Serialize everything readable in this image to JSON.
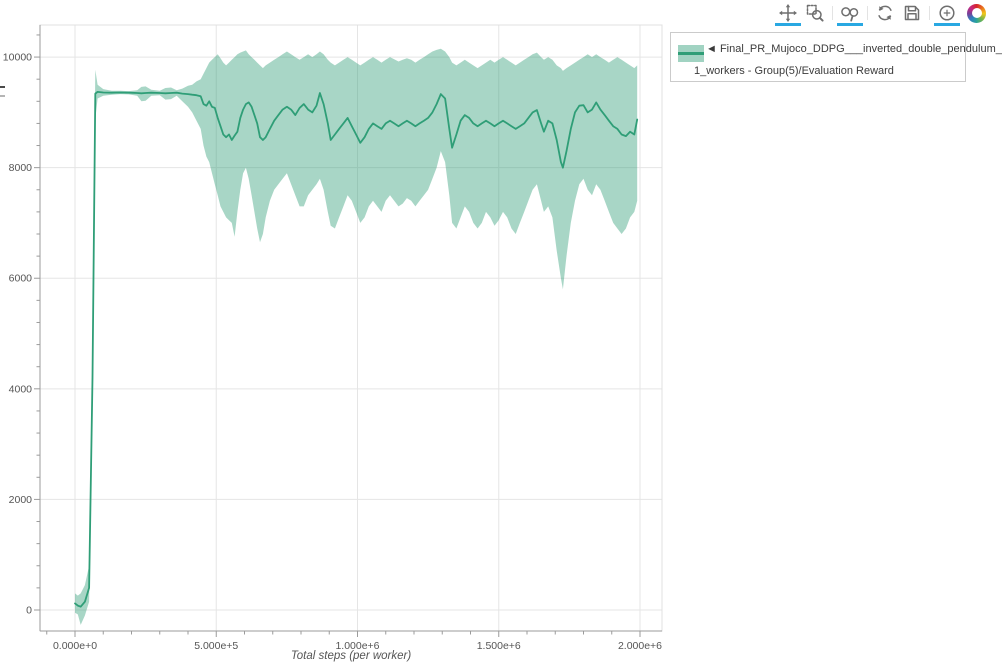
{
  "toolbar": {
    "active_color": "#29a8e2",
    "tools": [
      {
        "id": "pan",
        "icon": "move-arrows-icon",
        "active": true
      },
      {
        "id": "box-zoom",
        "icon": "magnifier-box-icon",
        "active": false
      },
      {
        "id": "wheel-zoom",
        "icon": "magnifier-wheel-icon",
        "active": true
      },
      {
        "id": "reset",
        "icon": "refresh-icon",
        "active": false
      },
      {
        "id": "save",
        "icon": "floppy-disk-icon",
        "active": false
      },
      {
        "id": "hover",
        "icon": "crosshair-circle-icon",
        "active": true
      }
    ]
  },
  "legend": {
    "swatch_fill": "rgba(47,158,119,0.45)",
    "swatch_line": "#2f9e77",
    "label_line1": "◄ Final_PR_Mujoco_DDPG___inverted_double_pendulum_",
    "label_line2": "1_workers - Group(5)/Evaluation Reward"
  },
  "chart_data": {
    "type": "line",
    "title": "",
    "xlabel": "Total steps (per worker)",
    "ylabel": "",
    "grid": true,
    "legend_position": "outside-top-right",
    "x_range": [
      -123900,
      2077900
    ],
    "y_range": [
      -380,
      10580
    ],
    "x_ticks": [
      {
        "v": 0,
        "label": "0.000e+0"
      },
      {
        "v": 500000,
        "label": "5.000e+5"
      },
      {
        "v": 1000000,
        "label": "1.000e+6"
      },
      {
        "v": 1500000,
        "label": "1.500e+6"
      },
      {
        "v": 2000000,
        "label": "2.000e+6"
      }
    ],
    "y_ticks": [
      {
        "v": 0,
        "label": "0"
      },
      {
        "v": 2000,
        "label": "2000"
      },
      {
        "v": 4000,
        "label": "4000"
      },
      {
        "v": 6000,
        "label": "6000"
      },
      {
        "v": 8000,
        "label": "8000"
      },
      {
        "v": 10000,
        "label": "10000"
      }
    ],
    "x_minor_step": 100000,
    "y_minor_step": 400,
    "colors": {
      "line": "#2f9e77",
      "band": "rgba(47,158,119,0.42)",
      "grid": "#e5e5e5",
      "frame": "#e0e0e0",
      "axis": "#9b9b9b",
      "tick": "#9b9b9b",
      "tick_label": "#555555"
    },
    "series": [
      {
        "name": "Final_PR_Mujoco_DDPG___inverted_double_pendulum_1_workers - Group(5)/Evaluation Reward",
        "note": "points are [steps, mean_reward, band_low, band_high]",
        "points": [
          [
            0,
            120,
            -50,
            300
          ],
          [
            10000,
            80,
            -80,
            260
          ],
          [
            20000,
            60,
            -270,
            300
          ],
          [
            35000,
            150,
            -100,
            450
          ],
          [
            50000,
            400,
            150,
            800
          ],
          [
            62000,
            4200,
            3600,
            4900
          ],
          [
            72000,
            9340,
            8880,
            9770
          ],
          [
            80000,
            9370,
            9250,
            9500
          ],
          [
            100000,
            9360,
            9300,
            9420
          ],
          [
            130000,
            9355,
            9320,
            9390
          ],
          [
            160000,
            9360,
            9330,
            9390
          ],
          [
            190000,
            9355,
            9325,
            9385
          ],
          [
            220000,
            9350,
            9300,
            9400
          ],
          [
            235000,
            9345,
            9200,
            9460
          ],
          [
            250000,
            9350,
            9210,
            9470
          ],
          [
            270000,
            9355,
            9300,
            9410
          ],
          [
            300000,
            9350,
            9310,
            9390
          ],
          [
            320000,
            9345,
            9230,
            9440
          ],
          [
            340000,
            9350,
            9240,
            9450
          ],
          [
            360000,
            9355,
            9300,
            9400
          ],
          [
            380000,
            9340,
            9200,
            9430
          ],
          [
            400000,
            9330,
            9100,
            9480
          ],
          [
            415000,
            9320,
            9000,
            9500
          ],
          [
            430000,
            9310,
            8850,
            9560
          ],
          [
            445000,
            9290,
            8700,
            9600
          ],
          [
            455000,
            9150,
            8400,
            9700
          ],
          [
            465000,
            9120,
            8200,
            9800
          ],
          [
            475000,
            9200,
            8100,
            9900
          ],
          [
            485000,
            9100,
            7900,
            9950
          ],
          [
            495000,
            9080,
            7700,
            10000
          ],
          [
            505000,
            8900,
            7500,
            10050
          ],
          [
            515000,
            8750,
            7300,
            9980
          ],
          [
            525000,
            8600,
            7200,
            9900
          ],
          [
            535000,
            8550,
            7100,
            9850
          ],
          [
            545000,
            8600,
            7050,
            9900
          ],
          [
            555000,
            8500,
            7000,
            9950
          ],
          [
            565000,
            8580,
            6750,
            10000
          ],
          [
            575000,
            8650,
            7200,
            10050
          ],
          [
            585000,
            8900,
            7600,
            10080
          ],
          [
            595000,
            9050,
            7900,
            10100
          ],
          [
            605000,
            9150,
            8000,
            10120
          ],
          [
            615000,
            9180,
            7800,
            10050
          ],
          [
            625000,
            9100,
            7500,
            10000
          ],
          [
            635000,
            8950,
            7200,
            9950
          ],
          [
            645000,
            8800,
            6900,
            9900
          ],
          [
            655000,
            8550,
            6650,
            9850
          ],
          [
            665000,
            8500,
            6800,
            9800
          ],
          [
            675000,
            8550,
            7100,
            9850
          ],
          [
            690000,
            8700,
            7400,
            9900
          ],
          [
            705000,
            8850,
            7600,
            9950
          ],
          [
            720000,
            8950,
            7700,
            10000
          ],
          [
            735000,
            9050,
            7800,
            10050
          ],
          [
            750000,
            9100,
            7900,
            10100
          ],
          [
            765000,
            9050,
            7700,
            10050
          ],
          [
            780000,
            8950,
            7500,
            10000
          ],
          [
            795000,
            9080,
            7300,
            9950
          ],
          [
            810000,
            9150,
            7300,
            10000
          ],
          [
            825000,
            9050,
            7500,
            10050
          ],
          [
            840000,
            9000,
            7600,
            10000
          ],
          [
            855000,
            9120,
            7700,
            10050
          ],
          [
            867000,
            9350,
            7800,
            10100
          ],
          [
            880000,
            9150,
            7600,
            10050
          ],
          [
            895000,
            8800,
            7200,
            9950
          ],
          [
            905000,
            8500,
            6950,
            9900
          ],
          [
            920000,
            8600,
            6900,
            9850
          ],
          [
            935000,
            8700,
            7100,
            9900
          ],
          [
            950000,
            8800,
            7300,
            9950
          ],
          [
            965000,
            8900,
            7500,
            10000
          ],
          [
            980000,
            8750,
            7400,
            9950
          ],
          [
            995000,
            8600,
            7200,
            9900
          ],
          [
            1010000,
            8450,
            7000,
            9850
          ],
          [
            1025000,
            8550,
            7100,
            9900
          ],
          [
            1040000,
            8700,
            7300,
            9950
          ],
          [
            1055000,
            8800,
            7400,
            10000
          ],
          [
            1070000,
            8750,
            7300,
            9950
          ],
          [
            1085000,
            8700,
            7200,
            9900
          ],
          [
            1100000,
            8800,
            7400,
            9950
          ],
          [
            1115000,
            8850,
            7500,
            10000
          ],
          [
            1130000,
            8800,
            7400,
            9960
          ],
          [
            1145000,
            8750,
            7300,
            9920
          ],
          [
            1160000,
            8800,
            7350,
            9950
          ],
          [
            1175000,
            8850,
            7450,
            9980
          ],
          [
            1190000,
            8800,
            7400,
            9950
          ],
          [
            1205000,
            8750,
            7300,
            9900
          ],
          [
            1220000,
            8800,
            7400,
            9950
          ],
          [
            1235000,
            8850,
            7500,
            10000
          ],
          [
            1250000,
            8900,
            7600,
            10050
          ],
          [
            1265000,
            9000,
            7800,
            10100
          ],
          [
            1280000,
            9150,
            8000,
            10130
          ],
          [
            1295000,
            9330,
            8300,
            10150
          ],
          [
            1310000,
            9250,
            8100,
            10100
          ],
          [
            1325000,
            8700,
            7500,
            10000
          ],
          [
            1335000,
            8360,
            7000,
            9900
          ],
          [
            1350000,
            8600,
            6900,
            9850
          ],
          [
            1365000,
            8850,
            7100,
            9900
          ],
          [
            1380000,
            8950,
            7300,
            9950
          ],
          [
            1395000,
            8900,
            7200,
            9900
          ],
          [
            1410000,
            8800,
            7000,
            9850
          ],
          [
            1425000,
            8750,
            6900,
            9800
          ],
          [
            1440000,
            8800,
            7000,
            9850
          ],
          [
            1455000,
            8850,
            7200,
            9900
          ],
          [
            1470000,
            8800,
            7100,
            9950
          ],
          [
            1485000,
            8750,
            6950,
            9900
          ],
          [
            1500000,
            8800,
            7050,
            9950
          ],
          [
            1515000,
            8850,
            7200,
            10000
          ],
          [
            1530000,
            8800,
            7100,
            9950
          ],
          [
            1545000,
            8750,
            6900,
            9900
          ],
          [
            1560000,
            8700,
            6800,
            9850
          ],
          [
            1575000,
            8750,
            7000,
            9900
          ],
          [
            1590000,
            8800,
            7200,
            9950
          ],
          [
            1605000,
            8900,
            7400,
            10000
          ],
          [
            1620000,
            9000,
            7600,
            10050
          ],
          [
            1635000,
            9040,
            7700,
            10080
          ],
          [
            1650000,
            8800,
            7400,
            10000
          ],
          [
            1660000,
            8650,
            7200,
            9950
          ],
          [
            1675000,
            8850,
            7300,
            10000
          ],
          [
            1690000,
            8800,
            7100,
            9950
          ],
          [
            1705000,
            8500,
            6500,
            9850
          ],
          [
            1720000,
            8100,
            6000,
            9800
          ],
          [
            1727000,
            8000,
            5800,
            9750
          ],
          [
            1740000,
            8300,
            6400,
            9800
          ],
          [
            1755000,
            8700,
            7000,
            9850
          ],
          [
            1770000,
            9000,
            7400,
            9900
          ],
          [
            1785000,
            9120,
            7700,
            9950
          ],
          [
            1800000,
            9130,
            7800,
            10000
          ],
          [
            1815000,
            9000,
            7600,
            10050
          ],
          [
            1830000,
            9050,
            7500,
            10000
          ],
          [
            1845000,
            9180,
            7700,
            10050
          ],
          [
            1860000,
            9050,
            7600,
            10000
          ],
          [
            1875000,
            8950,
            7400,
            9950
          ],
          [
            1890000,
            8850,
            7200,
            9900
          ],
          [
            1905000,
            8750,
            7000,
            9950
          ],
          [
            1920000,
            8700,
            6900,
            10000
          ],
          [
            1935000,
            8600,
            6800,
            9950
          ],
          [
            1950000,
            8570,
            6900,
            9900
          ],
          [
            1965000,
            8650,
            7100,
            9850
          ],
          [
            1980000,
            8600,
            7200,
            9800
          ],
          [
            1990000,
            8870,
            7400,
            9850
          ]
        ]
      }
    ]
  }
}
